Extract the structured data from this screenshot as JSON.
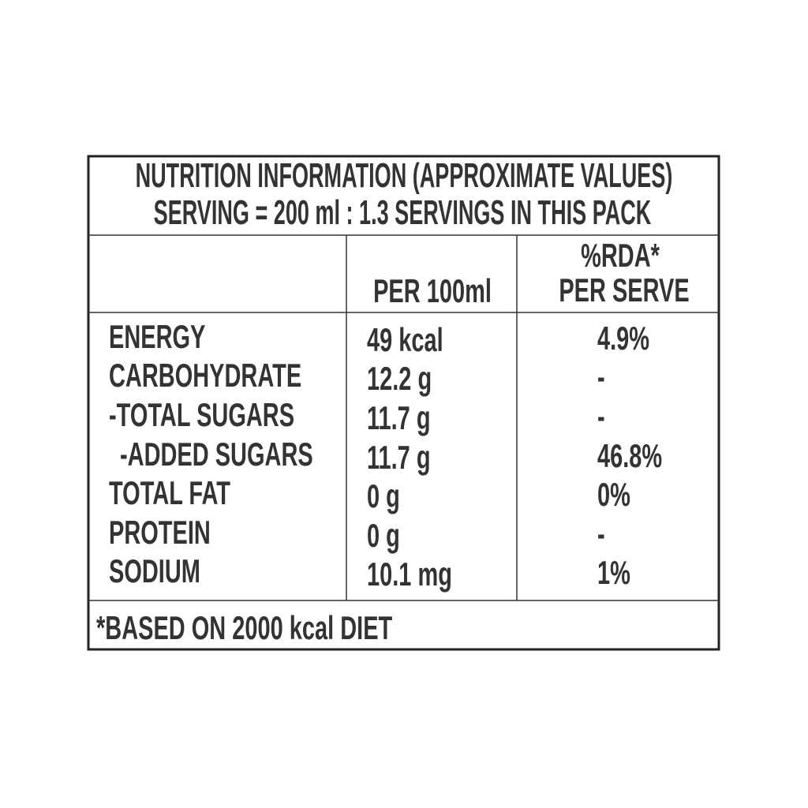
{
  "header": {
    "title": "NUTRITION INFORMATION (APPROXIMATE VALUES)",
    "serving": "SERVING = 200 ml : 1.3 SERVINGS IN THIS PACK"
  },
  "table": {
    "columns": {
      "per_100ml": "PER 100ml",
      "rda": [
        "%RDA*",
        "PER SERVE"
      ]
    },
    "rows": [
      [
        "ENERGY",
        "49 kcal",
        "4.9%"
      ],
      [
        "CARBOHYDRATE",
        "12.2 g",
        "-"
      ],
      [
        "-TOTAL SUGARS",
        "11.7 g",
        "-"
      ],
      [
        "-ADDED SUGARS",
        "11.7 g",
        "46.8%"
      ],
      [
        "TOTAL FAT",
        "0 g",
        "0%"
      ],
      [
        "PROTEIN",
        "0 g",
        "-"
      ],
      [
        "SODIUM",
        "10.1 mg",
        "1%"
      ]
    ]
  },
  "footnote": "*BASED ON 2000 kcal DIET"
}
